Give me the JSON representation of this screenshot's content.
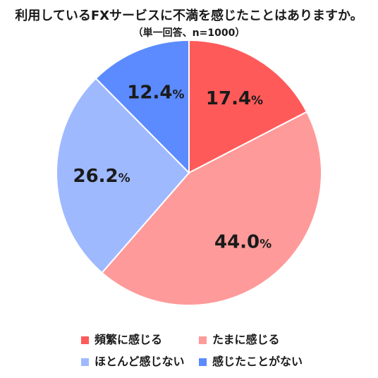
{
  "chart_data": {
    "type": "pie",
    "title": "利用しているFXサービスに不満を感じたことはありますか。",
    "subtitle": "（単一回答、n=1000）",
    "unit": "%",
    "categories": [
      "頻繁に感じる",
      "たまに感じる",
      "ほとんど感じない",
      "感じたことがない"
    ],
    "values": [
      17.4,
      44.0,
      26.2,
      12.4
    ],
    "value_labels": [
      "17.4",
      "44.0",
      "26.2",
      "12.4"
    ],
    "colors": [
      "#ff5a5a",
      "#ff9a9a",
      "#9fb9ff",
      "#5b8bff"
    ],
    "start_angle_deg": 0,
    "direction": "clockwise",
    "legend_position": "bottom"
  }
}
